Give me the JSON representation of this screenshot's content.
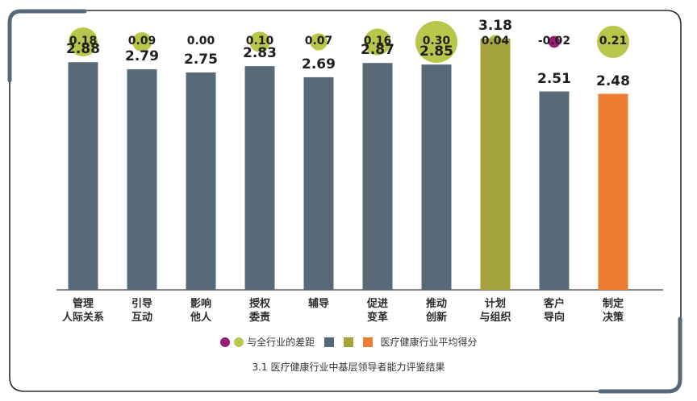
{
  "colors": {
    "bar_default": "#586a78",
    "bar_highlight_green": "#a4a33c",
    "bar_highlight_orange": "#ed7d31",
    "circle_positive": "#b8c74a",
    "circle_negative": "#9b1b78",
    "frame": "#2b2b2b",
    "frame_accent": "#56697a"
  },
  "chart_data": {
    "type": "bar",
    "categories": [
      "管理\n人际关系",
      "引导\n互动",
      "影响\n他人",
      "授权\n委责",
      "辅导",
      "促进\n变革",
      "推动\n创新",
      "计划\n与组织",
      "客户\n导向",
      "制定\n决策"
    ],
    "values": [
      2.88,
      2.79,
      2.75,
      2.83,
      2.69,
      2.87,
      2.85,
      3.18,
      2.51,
      2.48
    ],
    "value_labels": [
      "2.88",
      "2.79",
      "2.75",
      "2.83",
      "2.69",
      "2.87",
      "2.85",
      "3.18",
      "2.51",
      "2.48"
    ],
    "bar_colors": [
      "#586a78",
      "#586a78",
      "#586a78",
      "#586a78",
      "#586a78",
      "#586a78",
      "#586a78",
      "#a4a33c",
      "#586a78",
      "#ed7d31"
    ],
    "differences": [
      0.18,
      0.09,
      0.0,
      0.1,
      0.07,
      0.16,
      0.3,
      0.04,
      -0.02,
      0.21
    ],
    "difference_labels": [
      "0.18",
      "0.09",
      "0.00",
      "0.10",
      "0.07",
      "0.16",
      "0.30",
      "0.04",
      "-0.02",
      "0.21"
    ],
    "ylim": [
      0,
      3.3
    ],
    "grid": false,
    "legend_position": "bottom-center",
    "legend": {
      "difference_label": "与全行业的差距",
      "average_label": "医疗健康行业平均得分"
    },
    "caption": "3.1 医疗健康行业中基层领导者能力评鉴结果"
  }
}
